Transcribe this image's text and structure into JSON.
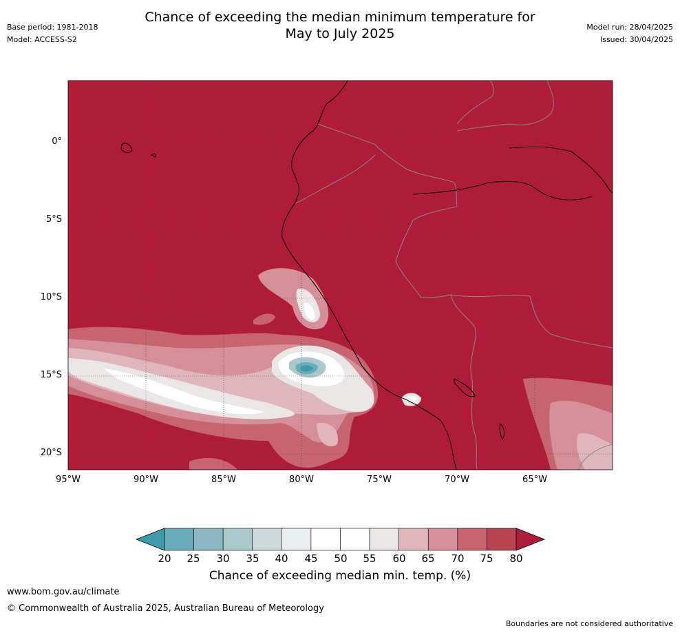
{
  "header": {
    "title_line1": "Chance of exceeding the median minimum temperature for",
    "title_line2": "May to July 2025",
    "base_period": "Base period: 1981-2018",
    "model": "Model: ACCESS-S2",
    "model_run": "Model run: 28/04/2025",
    "issued": "Issued: 30/04/2025"
  },
  "map": {
    "region": "Western South America and eastern Pacific",
    "lat_ticks": [
      "0°",
      "5°S",
      "10°S",
      "15°S",
      "20°S"
    ],
    "lon_ticks": [
      "95°W",
      "90°W",
      "85°W",
      "80°W",
      "75°W",
      "70°W",
      "65°W"
    ],
    "background_color": "#b01c38"
  },
  "legend": {
    "title": "Chance of exceeding median min. temp. (%)",
    "labels": [
      "20",
      "25",
      "30",
      "35",
      "40",
      "45",
      "50",
      "55",
      "60",
      "65",
      "70",
      "75",
      "80"
    ],
    "colors": [
      "#3d9bab",
      "#6aacb9",
      "#8cb8c4",
      "#aac7cc",
      "#cdd8da",
      "#e8eef0",
      "#ffffff",
      "#ffffff",
      "#ebe6e6",
      "#dfb6bb",
      "#d58f98",
      "#c6646f",
      "#bb4452",
      "#b01c38"
    ]
  },
  "footer": {
    "url": "www.bom.gov.au/climate",
    "copyright": "© Commonwealth of Australia 2025, Australian Bureau of Meteorology",
    "disclaimer": "Boundaries are not considered authoritative"
  }
}
